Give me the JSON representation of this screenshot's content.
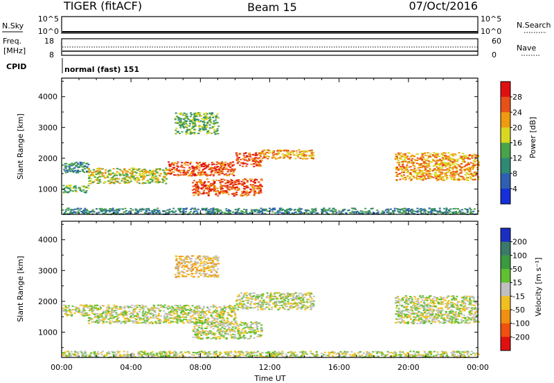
{
  "header": {
    "title": "TIGER (fitACF)",
    "beam": "Beam 15",
    "date": "07/Oct/2016"
  },
  "top_panels": {
    "nsky_label": "N.Sky",
    "nsky_ticks": [
      "10^5",
      "10^0"
    ],
    "nsearch_label": "N.Search",
    "nsearch_ticks": [
      "10^5",
      "10^0"
    ],
    "freq_label_1": "Freq.",
    "freq_label_2": "[MHz]",
    "freq_ticks": [
      "18",
      "8"
    ],
    "nave_label": "Nave",
    "nave_ticks": [
      "60",
      "0"
    ],
    "cpid_label": "CPID",
    "cpid_text": "normal (fast) 151"
  },
  "chart_data": [
    {
      "type": "heatmap",
      "name": "power",
      "ylabel": "Slant Range [km]",
      "xlabel": "Time UT",
      "x_ticks": [
        "00:00",
        "04:00",
        "08:00",
        "12:00",
        "16:00",
        "20:00",
        "00:00"
      ],
      "xlim_hours": [
        0,
        24
      ],
      "y_ticks": [
        1000,
        2000,
        3000,
        4000
      ],
      "ylim": [
        180,
        4600
      ],
      "colorbar": {
        "label": "Power [dB]",
        "ticks": [
          4,
          8,
          12,
          16,
          20,
          24,
          28
        ],
        "colors": [
          "#1530d8",
          "#2f5fb0",
          "#2e8a72",
          "#4aa24a",
          "#d8d820",
          "#ef9a10",
          "#e85018",
          "#e01010"
        ]
      },
      "echo_regions_hours_km": [
        {
          "t": [
            0.0,
            1.5
          ],
          "r": [
            1550,
            1900
          ],
          "level": 2
        },
        {
          "t": [
            0.0,
            1.5
          ],
          "r": [
            900,
            1150
          ],
          "level": 3
        },
        {
          "t": [
            1.5,
            6.0
          ],
          "r": [
            1200,
            1700
          ],
          "level": 4
        },
        {
          "t": [
            6.0,
            10.0
          ],
          "r": [
            1450,
            1900
          ],
          "level": 6
        },
        {
          "t": [
            10.0,
            11.5
          ],
          "r": [
            1750,
            2200
          ],
          "level": 6
        },
        {
          "t": [
            11.5,
            14.5
          ],
          "r": [
            2000,
            2300
          ],
          "level": 5
        },
        {
          "t": [
            7.5,
            11.5
          ],
          "r": [
            800,
            1350
          ],
          "level": 6
        },
        {
          "t": [
            6.5,
            9.0
          ],
          "r": [
            2800,
            3500
          ],
          "level": 3
        },
        {
          "t": [
            19.2,
            24.0
          ],
          "r": [
            1300,
            2200
          ],
          "level": 5
        },
        {
          "t": [
            0.0,
            24.0
          ],
          "r": [
            200,
            400
          ],
          "level": 2
        }
      ]
    },
    {
      "type": "heatmap",
      "name": "velocity",
      "ylabel": "Slant Range [km]",
      "xlabel": "Time UT",
      "x_ticks": [
        "00:00",
        "04:00",
        "08:00",
        "12:00",
        "16:00",
        "20:00",
        "00:00"
      ],
      "xlim_hours": [
        0,
        24
      ],
      "y_ticks": [
        1000,
        2000,
        3000,
        4000
      ],
      "ylim": [
        180,
        4600
      ],
      "colorbar": {
        "label": "Velocity [m s⁻¹]",
        "ticks": [
          200,
          100,
          50,
          15,
          -15,
          -50,
          -100,
          -200
        ],
        "colors": [
          "#1a2ec0",
          "#3a7a6a",
          "#3a9a40",
          "#60c030",
          "#c0c0c0",
          "#f0c020",
          "#f09010",
          "#f05010",
          "#e01010"
        ]
      },
      "echo_regions_hours_km": [
        {
          "t": [
            0.0,
            1.5
          ],
          "r": [
            1550,
            1900
          ],
          "level": 4
        },
        {
          "t": [
            1.5,
            10.0
          ],
          "r": [
            1300,
            1900
          ],
          "level": 4
        },
        {
          "t": [
            10.0,
            14.5
          ],
          "r": [
            1750,
            2300
          ],
          "level": 4
        },
        {
          "t": [
            7.5,
            11.5
          ],
          "r": [
            800,
            1350
          ],
          "level": 4
        },
        {
          "t": [
            6.5,
            9.0
          ],
          "r": [
            2800,
            3500
          ],
          "level": 5
        },
        {
          "t": [
            19.2,
            24.0
          ],
          "r": [
            1300,
            2200
          ],
          "level": 4
        },
        {
          "t": [
            0.0,
            24.0
          ],
          "r": [
            200,
            400
          ],
          "level": 4
        }
      ]
    }
  ]
}
